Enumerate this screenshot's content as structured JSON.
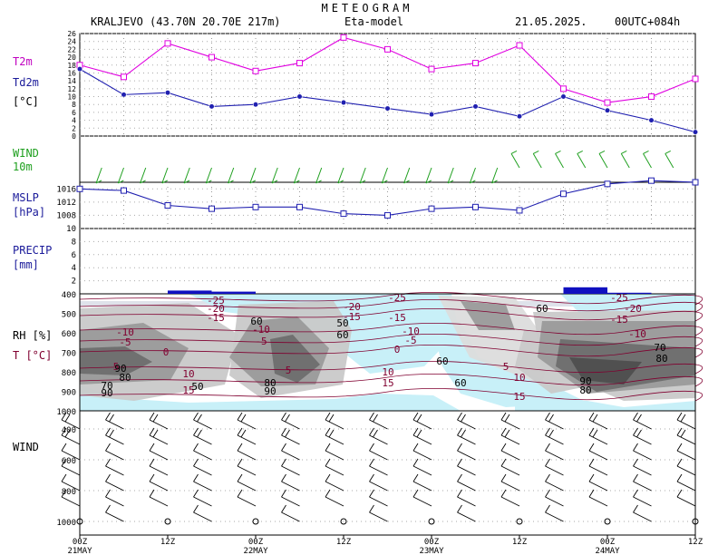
{
  "header": {
    "title": "METEOGRAM",
    "station": "KRALJEVO (43.70N 20.70E 217m)",
    "model": "Eta-model",
    "date": "21.05.2025.",
    "run": "00UTC+084h"
  },
  "labels": {
    "t2m": "T2m",
    "td2m": "Td2m",
    "temp_unit": "[°C]",
    "wind10": "WIND",
    "wind10_sub": "10m",
    "mslp": "MSLP",
    "mslp_unit": "[hPa]",
    "precip": "PRECIP",
    "precip_unit": "[mm]",
    "rh": "RH [%]",
    "t": "T [°C]",
    "wind_upper": "WIND"
  },
  "colors": {
    "t2m": "#e000e0",
    "td2m": "#2020b0",
    "wind": "#20a020",
    "mslp": "#2020b0",
    "precip": "#1010c0",
    "isotherm": "#800030",
    "label_blue": "#1a1a9a",
    "label_magenta": "#c000c0",
    "cold": "#c8f0f8"
  },
  "x_ticks": [
    {
      "label": "00Z",
      "sub": "21MAY",
      "h": 0
    },
    {
      "label": "12Z",
      "sub": "",
      "h": 12
    },
    {
      "label": "00Z",
      "sub": "22MAY",
      "h": 24
    },
    {
      "label": "12Z",
      "sub": "",
      "h": 36
    },
    {
      "label": "00Z",
      "sub": "23MAY",
      "h": 48
    },
    {
      "label": "12Z",
      "sub": "",
      "h": 60
    },
    {
      "label": "00Z",
      "sub": "24MAY",
      "h": 72
    },
    {
      "label": "12Z",
      "sub": "",
      "h": 84
    }
  ],
  "chart_data": {
    "type": "line",
    "hours": [
      0,
      6,
      12,
      18,
      24,
      30,
      36,
      42,
      48,
      54,
      60,
      66,
      72,
      78,
      84
    ],
    "series": [
      {
        "name": "T2m",
        "values": [
          18,
          15,
          23.5,
          20,
          16.5,
          18.5,
          25,
          22,
          17,
          18.5,
          23,
          12,
          8.5,
          10,
          14.5
        ]
      },
      {
        "name": "Td2m",
        "values": [
          17,
          10.5,
          11,
          7.5,
          8,
          10,
          8.5,
          7,
          5.5,
          7.5,
          5,
          10,
          6.5,
          4,
          1
        ]
      },
      {
        "name": "MSLP",
        "values": [
          1016,
          1015.5,
          1011,
          1010,
          1010.5,
          1010.5,
          1008.5,
          1008,
          1010,
          1010.5,
          1009.5,
          1014.5,
          1017.5,
          1018.5,
          1018
        ]
      },
      {
        "name": "PRECIP",
        "values": [
          0,
          0,
          0.3,
          0.2,
          0,
          0,
          0,
          0,
          0,
          0,
          0,
          0.6,
          0.1,
          0,
          0
        ]
      }
    ],
    "temp_axis": {
      "ylim": [
        0,
        26
      ],
      "ticks": [
        0,
        2,
        4,
        6,
        8,
        10,
        12,
        14,
        16,
        18,
        20,
        22,
        24,
        26
      ]
    },
    "mslp_axis": {
      "ylim": [
        1004,
        1018
      ],
      "ticks": [
        1008,
        1012,
        1016
      ]
    },
    "precip_axis": {
      "ylim": [
        0,
        10
      ],
      "ticks": [
        2,
        4,
        6,
        8,
        10
      ]
    },
    "pressure_axis": {
      "ylim": [
        1000,
        400
      ],
      "ticks": [
        400,
        500,
        600,
        700,
        800,
        900,
        1000
      ]
    },
    "isotherm_labels": [
      "-25",
      "-20",
      "-15",
      "-10",
      "-5",
      "0",
      "5",
      "10",
      "15"
    ],
    "rh_labels": [
      "50",
      "60",
      "70",
      "80",
      "90"
    ],
    "grid": true
  }
}
